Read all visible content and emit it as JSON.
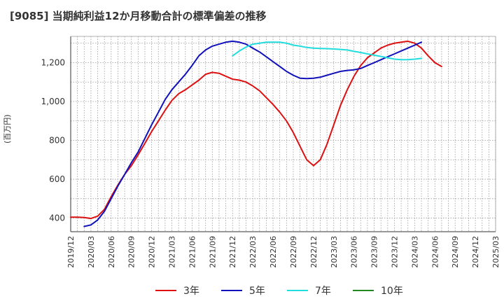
{
  "title": "[9085]  当期純利益12か月移動合計の標準偏差の推移",
  "chart_data": {
    "type": "line",
    "title": "[9085]  当期純利益12か月移動合計の標準偏差の推移",
    "xlabel": "",
    "ylabel": "(百万円)",
    "ylim": [
      330,
      1335
    ],
    "yticks": [
      400,
      600,
      800,
      1000,
      1200
    ],
    "ytick_labels": [
      "400",
      "600",
      "800",
      "1,000",
      "1,200"
    ],
    "xticks": [
      "2019/12",
      "2020/03",
      "2020/06",
      "2020/09",
      "2020/12",
      "2021/03",
      "2021/06",
      "2021/09",
      "2021/12",
      "2022/03",
      "2022/06",
      "2022/09",
      "2022/12",
      "2023/03",
      "2023/06",
      "2023/09",
      "2023/12",
      "2024/03",
      "2024/06",
      "2024/09",
      "2024/12",
      "2025/03"
    ],
    "grid": true,
    "legend_position": "bottom",
    "series": [
      {
        "name": "3年",
        "color": "#dd1111",
        "start": "2019/12",
        "values": [
          405,
          405,
          403,
          398,
          410,
          445,
          510,
          570,
          625,
          670,
          725,
          785,
          845,
          900,
          955,
          1005,
          1040,
          1060,
          1085,
          1110,
          1140,
          1150,
          1145,
          1130,
          1115,
          1110,
          1100,
          1080,
          1055,
          1020,
          985,
          945,
          900,
          840,
          770,
          700,
          670,
          700,
          780,
          880,
          980,
          1060,
          1130,
          1185,
          1225,
          1250,
          1275,
          1290,
          1300,
          1305,
          1310,
          1300,
          1275,
          1235,
          1200,
          1180
        ]
      },
      {
        "name": "5年",
        "color": "#1111bb",
        "start": "2019/12",
        "values": [
          null,
          null,
          357,
          365,
          390,
          435,
          500,
          565,
          625,
          685,
          740,
          810,
          880,
          945,
          1010,
          1060,
          1100,
          1140,
          1185,
          1235,
          1265,
          1285,
          1295,
          1305,
          1310,
          1305,
          1295,
          1275,
          1255,
          1230,
          1205,
          1180,
          1155,
          1135,
          1120,
          1118,
          1120,
          1125,
          1135,
          1145,
          1155,
          1160,
          1163,
          1170,
          1185,
          1200,
          1215,
          1230,
          1245,
          1260,
          1275,
          1290,
          1305
        ]
      },
      {
        "name": "7年",
        "color": "#22dddd",
        "start": "2019/12",
        "values": [
          null,
          null,
          null,
          null,
          null,
          null,
          null,
          null,
          null,
          null,
          null,
          null,
          null,
          null,
          null,
          null,
          null,
          null,
          null,
          null,
          null,
          null,
          null,
          null,
          1235,
          1260,
          1280,
          1295,
          1300,
          1305,
          1305,
          1305,
          1300,
          1290,
          1285,
          1278,
          1275,
          1273,
          1272,
          1270,
          1268,
          1265,
          1258,
          1252,
          1245,
          1238,
          1232,
          1225,
          1218,
          1215,
          1215,
          1218,
          1222
        ]
      },
      {
        "name": "10年",
        "color": "#228822",
        "start": "2019/12",
        "values": []
      }
    ]
  }
}
